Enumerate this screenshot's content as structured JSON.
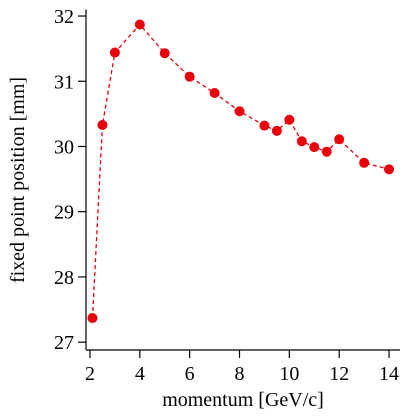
{
  "chart_data": {
    "type": "line",
    "x_label": "momentum [GeV/c]",
    "y_label": "fixed point position [mm]",
    "x": [
      2.1,
      2.5,
      3,
      4,
      5,
      6,
      7,
      8,
      9,
      9.5,
      10,
      10.5,
      11,
      11.5,
      12,
      13,
      14
    ],
    "series": [
      {
        "color": "#e8000b",
        "values": [
          27.37,
          30.33,
          31.44,
          31.87,
          31.43,
          31.07,
          30.82,
          30.54,
          30.32,
          30.24,
          30.41,
          30.08,
          29.99,
          29.92,
          30.11,
          29.75,
          29.65
        ]
      }
    ],
    "xlim": [
      1.84,
      14.44
    ],
    "ylim": [
      26.88,
      32.1
    ],
    "xticks": [
      2,
      4,
      6,
      8,
      10,
      12,
      14
    ],
    "yticks": [
      27,
      28,
      29,
      30,
      31,
      32
    ],
    "line_style": "dashed",
    "markers": true
  }
}
